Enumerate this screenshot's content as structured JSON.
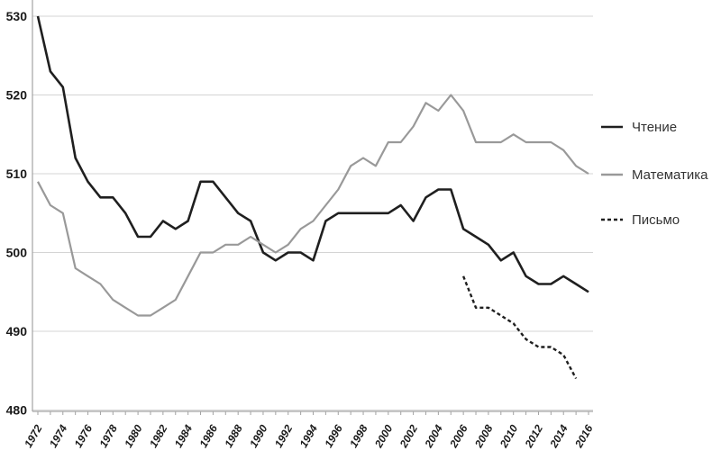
{
  "page": {
    "background": "#ffffff"
  },
  "chart_data": {
    "type": "line",
    "title": "",
    "xlabel": "",
    "ylabel": "",
    "ylim": [
      480,
      530
    ],
    "ytick_labels": [
      480,
      490,
      500,
      510,
      520,
      530
    ],
    "xlim": [
      1972,
      2016
    ],
    "xtick_labels": [
      1972,
      1974,
      1976,
      1978,
      1980,
      1982,
      1984,
      1986,
      1988,
      1990,
      1992,
      1994,
      1996,
      1998,
      2000,
      2002,
      2004,
      2006,
      2008,
      2010,
      2012,
      2014,
      2016
    ],
    "grid": "horizontal",
    "legend_position": "right",
    "grid_color": "#d4d4d4",
    "axis_color": "#a3a3a3",
    "label_color": "#1a1a1a",
    "x": [
      1972,
      1973,
      1974,
      1975,
      1976,
      1977,
      1978,
      1979,
      1980,
      1981,
      1982,
      1983,
      1984,
      1985,
      1986,
      1987,
      1988,
      1989,
      1990,
      1991,
      1992,
      1993,
      1994,
      1995,
      1996,
      1997,
      1998,
      1999,
      2000,
      2001,
      2002,
      2003,
      2004,
      2005,
      2006,
      2007,
      2008,
      2009,
      2010,
      2011,
      2012,
      2013,
      2014,
      2015,
      2016
    ],
    "series": [
      {
        "name": "Чтение",
        "color": "#1f1f1f",
        "style": "solid",
        "x": [
          1972,
          1973,
          1974,
          1975,
          1976,
          1977,
          1978,
          1979,
          1980,
          1981,
          1982,
          1983,
          1984,
          1985,
          1986,
          1987,
          1988,
          1989,
          1990,
          1991,
          1992,
          1993,
          1994,
          1995,
          1996,
          1997,
          1998,
          1999,
          2000,
          2001,
          2002,
          2003,
          2004,
          2005,
          2006,
          2007,
          2008,
          2009,
          2010,
          2011,
          2012,
          2013,
          2014,
          2015,
          2016
        ],
        "values": [
          530,
          523,
          521,
          512,
          509,
          507,
          507,
          505,
          502,
          502,
          504,
          503,
          504,
          509,
          509,
          507,
          505,
          504,
          500,
          499,
          500,
          500,
          499,
          504,
          505,
          505,
          505,
          505,
          505,
          506,
          504,
          507,
          508,
          508,
          503,
          502,
          501,
          499,
          500,
          497,
          496,
          496,
          497,
          496,
          495
        ]
      },
      {
        "name": "Математика",
        "color": "#999999",
        "style": "solid",
        "x": [
          1972,
          1973,
          1974,
          1975,
          1976,
          1977,
          1978,
          1979,
          1980,
          1981,
          1982,
          1983,
          1984,
          1985,
          1986,
          1987,
          1988,
          1989,
          1990,
          1991,
          1992,
          1993,
          1994,
          1995,
          1996,
          1997,
          1998,
          1999,
          2000,
          2001,
          2002,
          2003,
          2004,
          2005,
          2006,
          2007,
          2008,
          2009,
          2010,
          2011,
          2012,
          2013,
          2014,
          2015,
          2016
        ],
        "values": [
          509,
          506,
          505,
          498,
          497,
          496,
          494,
          493,
          492,
          492,
          493,
          494,
          497,
          500,
          500,
          501,
          501,
          502,
          501,
          500,
          501,
          503,
          504,
          506,
          508,
          511,
          512,
          511,
          514,
          514,
          516,
          519,
          518,
          520,
          518,
          514,
          514,
          514,
          515,
          514,
          514,
          514,
          513,
          511,
          510
        ]
      },
      {
        "name": "Письмо",
        "color": "#1f1f1f",
        "style": "dashed",
        "x": [
          2006,
          2007,
          2008,
          2009,
          2010,
          2011,
          2012,
          2013,
          2014,
          2015
        ],
        "values": [
          497,
          493,
          493,
          492,
          491,
          489,
          488,
          488,
          487,
          484
        ]
      }
    ]
  },
  "legend": {
    "items": [
      {
        "label": "Чтение"
      },
      {
        "label": "Математика"
      },
      {
        "label": "Письмо"
      }
    ]
  }
}
